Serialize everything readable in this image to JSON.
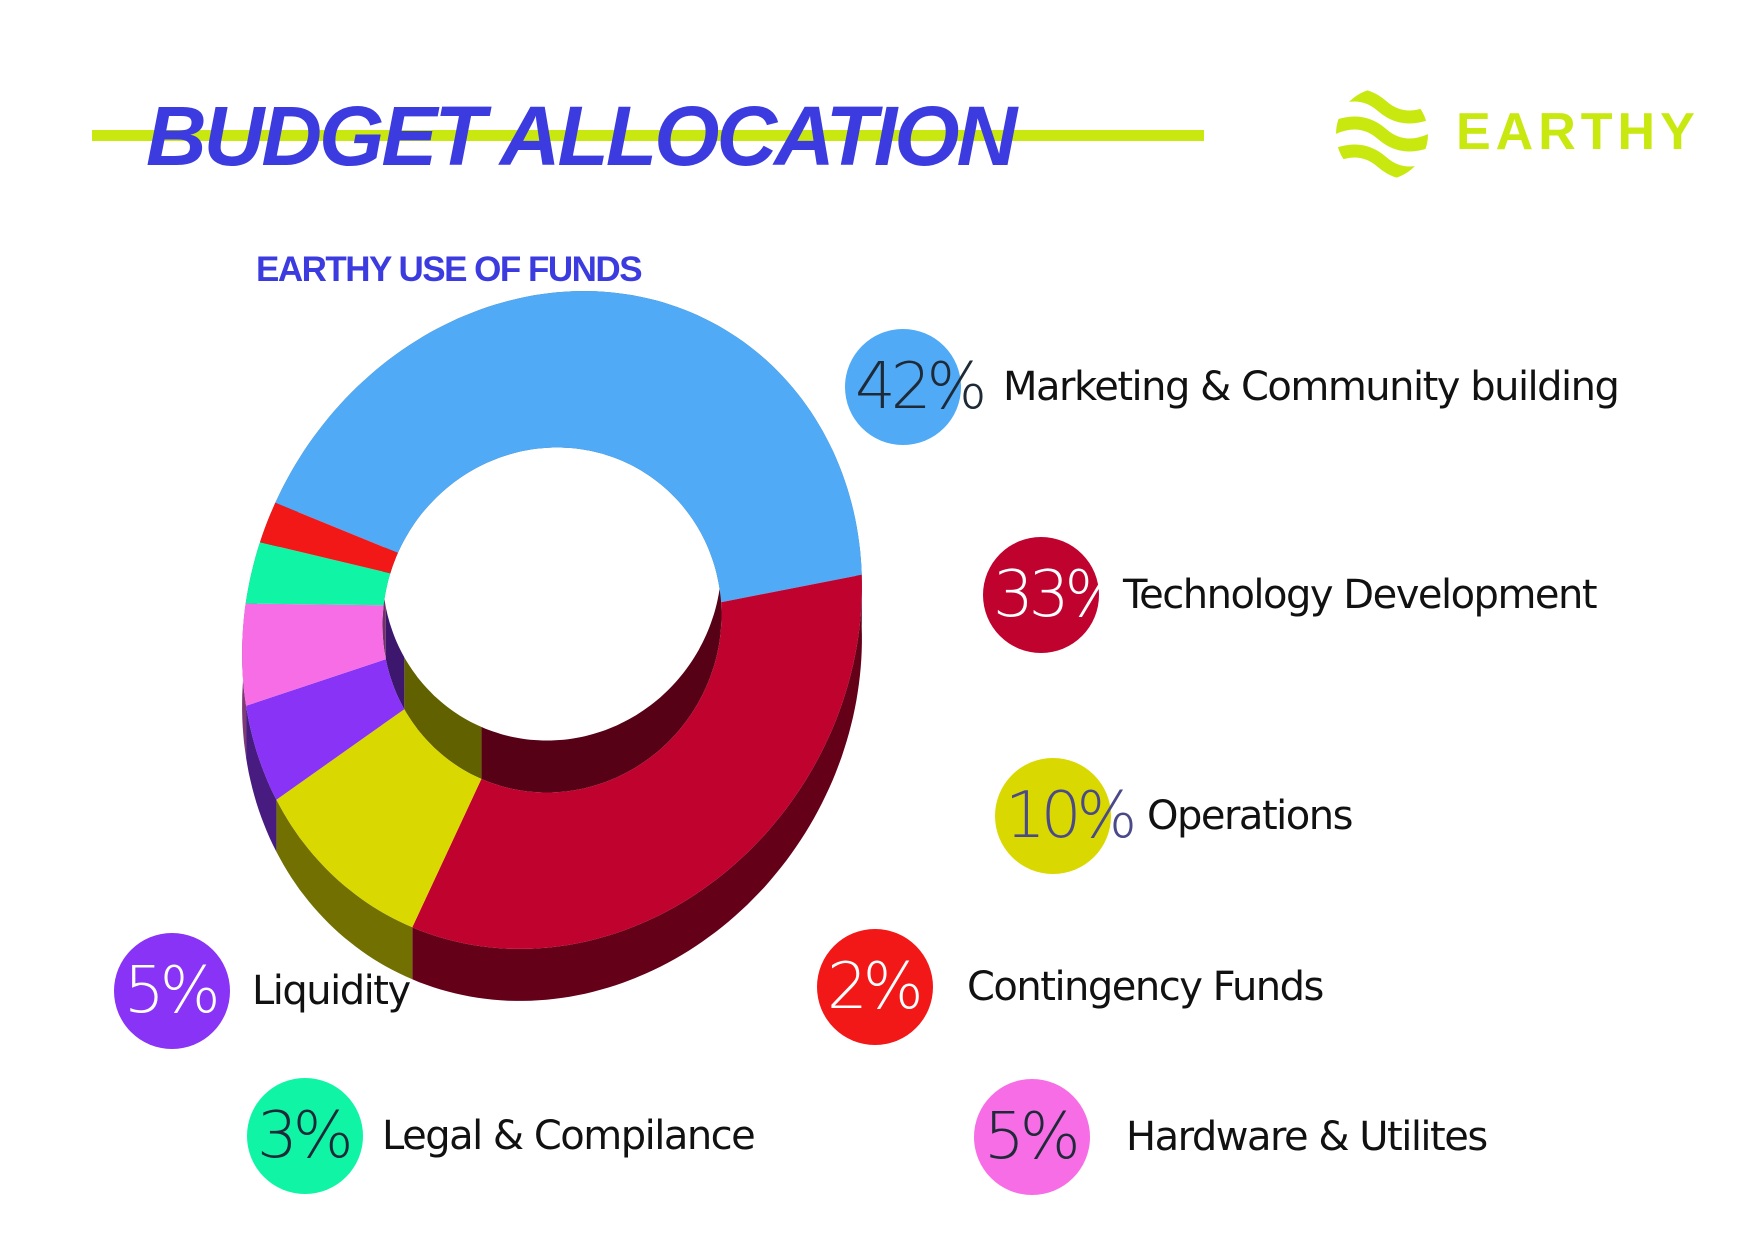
{
  "header": {
    "title": "BUDGET ALLOCATION"
  },
  "logo": {
    "text": "EARTHY",
    "icon": "earthy-wave-globe-icon",
    "color": "#c8e80f"
  },
  "colors": {
    "title": "#3b3be0",
    "accent_line": "#c8e80f"
  },
  "chart_data": {
    "type": "pie",
    "subtitle": "EARTHY USE OF FUNDS",
    "style": "3d-donut",
    "slices": [
      {
        "label": "Marketing & Community building",
        "pct_label": "42%",
        "value": 42,
        "color": "#50aaf5"
      },
      {
        "label": "Technology Development",
        "pct_label": "33%",
        "value": 33,
        "color": "#c0022f"
      },
      {
        "label": "Operations",
        "pct_label": "10%",
        "value": 10,
        "color": "#d9d800"
      },
      {
        "label": "Liquidity",
        "pct_label": "5%",
        "value": 5,
        "color": "#8833f5"
      },
      {
        "label": "Hardware & Utilites",
        "pct_label": "5%",
        "value": 5,
        "color": "#f76de5"
      },
      {
        "label": "Legal & Compilance",
        "pct_label": "3%",
        "value": 3,
        "color": "#10f5a5"
      },
      {
        "label": "Contingency Funds",
        "pct_label": "2%",
        "value": 2,
        "color": "#f21818"
      }
    ]
  }
}
